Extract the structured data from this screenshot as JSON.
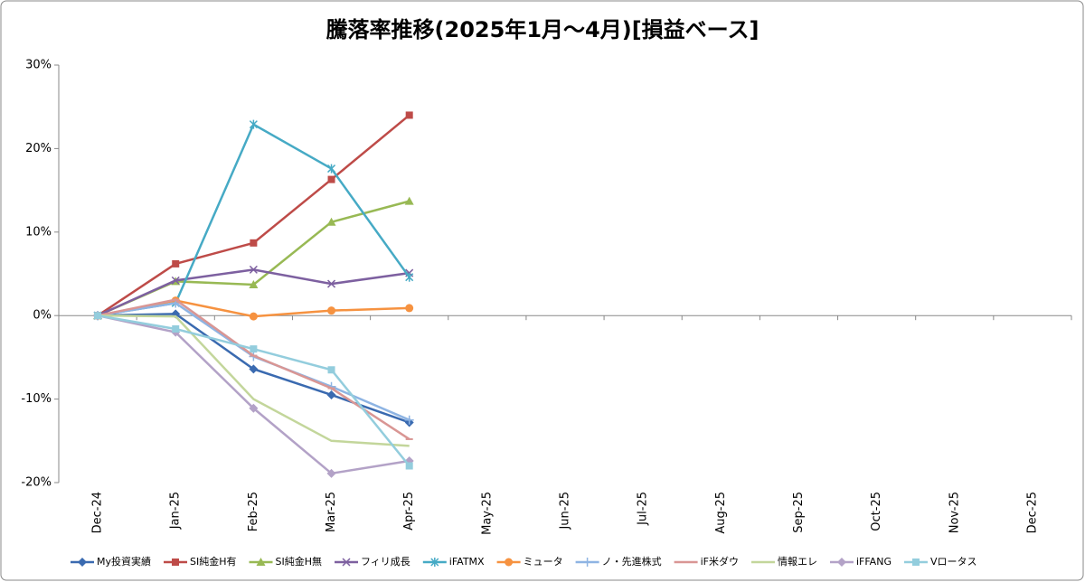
{
  "chart_data": {
    "type": "line",
    "title": "騰落率推移(2025年1月～4月)[損益ベース]",
    "categories": [
      "Dec-24",
      "Jan-25",
      "Feb-25",
      "Mar-25",
      "Apr-25",
      "May-25",
      "Jun-25",
      "Jul-25",
      "Aug-25",
      "Sep-25",
      "Oct-25",
      "Nov-25",
      "Dec-25"
    ],
    "ylim": [
      -20,
      30
    ],
    "yticks": [
      {
        "value": -20,
        "label": "-20%"
      },
      {
        "value": -10,
        "label": "-10%"
      },
      {
        "value": 0,
        "label": "0%"
      },
      {
        "value": 10,
        "label": "10%"
      },
      {
        "value": 20,
        "label": "20%"
      },
      {
        "value": 30,
        "label": "30%"
      }
    ],
    "grid": false,
    "legend": "bottom",
    "series": [
      {
        "name": "My投資実績",
        "color": "#3a6ab0",
        "marker": "diamond",
        "values": [
          0,
          0.2,
          -6.4,
          -9.5,
          -12.8,
          null,
          null,
          null,
          null,
          null,
          null,
          null,
          null
        ]
      },
      {
        "name": "SI純金H有",
        "color": "#be4b48",
        "marker": "square",
        "values": [
          0,
          6.2,
          8.7,
          16.3,
          24.0,
          null,
          null,
          null,
          null,
          null,
          null,
          null,
          null
        ]
      },
      {
        "name": "SI純金H無",
        "color": "#98b954",
        "marker": "triangle",
        "values": [
          0,
          4.1,
          3.7,
          11.2,
          13.7,
          null,
          null,
          null,
          null,
          null,
          null,
          null,
          null
        ]
      },
      {
        "name": "フィリ成長",
        "color": "#7d60a0",
        "marker": "x",
        "values": [
          0,
          4.2,
          5.5,
          3.8,
          5.1,
          null,
          null,
          null,
          null,
          null,
          null,
          null,
          null
        ]
      },
      {
        "name": "iFATMX",
        "color": "#46aac5",
        "marker": "star",
        "values": [
          0,
          1.5,
          22.9,
          17.6,
          4.6,
          null,
          null,
          null,
          null,
          null,
          null,
          null,
          null
        ]
      },
      {
        "name": "ミュータ",
        "color": "#f69240",
        "marker": "circle",
        "values": [
          0,
          1.8,
          -0.1,
          0.6,
          0.9,
          null,
          null,
          null,
          null,
          null,
          null,
          null,
          null
        ]
      },
      {
        "name": "ノ・先進株式",
        "color": "#8eb4e3",
        "marker": "plus",
        "values": [
          0,
          1.5,
          -4.9,
          -8.5,
          -12.5,
          null,
          null,
          null,
          null,
          null,
          null,
          null,
          null
        ]
      },
      {
        "name": "iF米ダウ",
        "color": "#d99694",
        "marker": "dash",
        "values": [
          0,
          1.9,
          -4.8,
          -8.7,
          -14.8,
          null,
          null,
          null,
          null,
          null,
          null,
          null,
          null
        ]
      },
      {
        "name": "情報エレ",
        "color": "#c3d69b",
        "marker": "none",
        "values": [
          0,
          -0.1,
          -10.0,
          -15.0,
          -15.6,
          null,
          null,
          null,
          null,
          null,
          null,
          null,
          null
        ]
      },
      {
        "name": "iFFANG",
        "color": "#b3a2c7",
        "marker": "diamond",
        "values": [
          0,
          -2.0,
          -11.1,
          -18.9,
          -17.4,
          null,
          null,
          null,
          null,
          null,
          null,
          null,
          null
        ]
      },
      {
        "name": "Vロータス",
        "color": "#93cddd",
        "marker": "square",
        "values": [
          0,
          -1.6,
          -4.0,
          -6.5,
          -18.0,
          null,
          null,
          null,
          null,
          null,
          null,
          null,
          null
        ]
      }
    ]
  }
}
